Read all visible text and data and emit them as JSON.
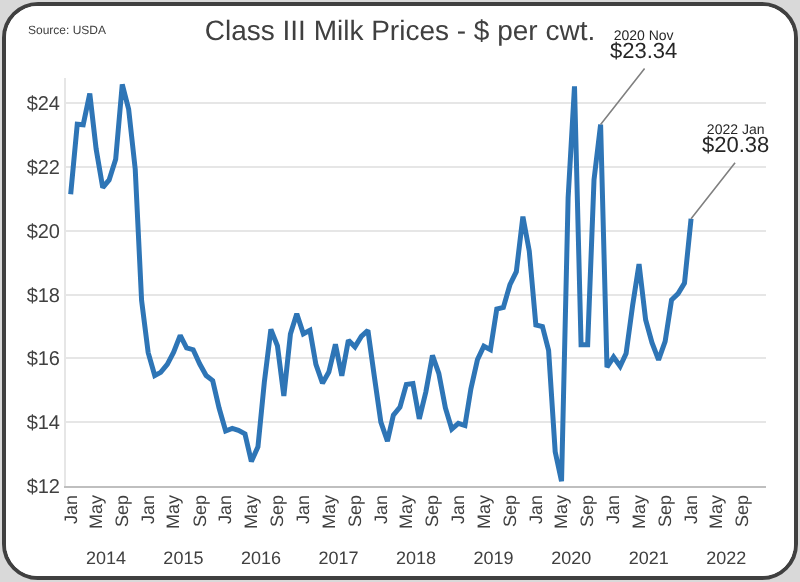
{
  "chart_data": {
    "type": "line",
    "title": "Class III Milk Prices - $ per cwt.",
    "x": [
      "2014-01",
      "2014-02",
      "2014-03",
      "2014-04",
      "2014-05",
      "2014-06",
      "2014-07",
      "2014-08",
      "2014-09",
      "2014-10",
      "2014-11",
      "2014-12",
      "2015-01",
      "2015-02",
      "2015-03",
      "2015-04",
      "2015-05",
      "2015-06",
      "2015-07",
      "2015-08",
      "2015-09",
      "2015-10",
      "2015-11",
      "2015-12",
      "2016-01",
      "2016-02",
      "2016-03",
      "2016-04",
      "2016-05",
      "2016-06",
      "2016-07",
      "2016-08",
      "2016-09",
      "2016-10",
      "2016-11",
      "2016-12",
      "2017-01",
      "2017-02",
      "2017-03",
      "2017-04",
      "2017-05",
      "2017-06",
      "2017-07",
      "2017-08",
      "2017-09",
      "2017-10",
      "2017-11",
      "2017-12",
      "2018-01",
      "2018-02",
      "2018-03",
      "2018-04",
      "2018-05",
      "2018-06",
      "2018-07",
      "2018-08",
      "2018-09",
      "2018-10",
      "2018-11",
      "2018-12",
      "2019-01",
      "2019-02",
      "2019-03",
      "2019-04",
      "2019-05",
      "2019-06",
      "2019-07",
      "2019-08",
      "2019-09",
      "2019-10",
      "2019-11",
      "2019-12",
      "2020-01",
      "2020-02",
      "2020-03",
      "2020-04",
      "2020-05",
      "2020-06",
      "2020-07",
      "2020-08",
      "2020-09",
      "2020-10",
      "2020-11",
      "2020-12",
      "2021-01",
      "2021-02",
      "2021-03",
      "2021-04",
      "2021-05",
      "2021-06",
      "2021-07",
      "2021-08",
      "2021-09",
      "2021-10",
      "2021-11",
      "2021-12",
      "2022-01"
    ],
    "series": [
      {
        "color": "#2e75b6",
        "values": [
          21.15,
          23.35,
          23.33,
          24.31,
          22.57,
          21.36,
          21.6,
          22.25,
          24.6,
          23.82,
          21.94,
          17.82,
          16.18,
          15.46,
          15.56,
          15.81,
          16.19,
          16.72,
          16.33,
          16.27,
          15.82,
          15.46,
          15.3,
          14.44,
          13.72,
          13.8,
          13.74,
          13.63,
          12.76,
          13.22,
          15.24,
          16.91,
          16.39,
          14.82,
          16.76,
          17.4,
          16.77,
          16.88,
          15.81,
          15.22,
          15.57,
          16.44,
          15.45,
          16.57,
          16.36,
          16.69,
          16.88,
          15.44,
          14.0,
          13.4,
          14.22,
          14.47,
          15.18,
          15.21,
          14.1,
          14.95,
          16.09,
          15.53,
          14.44,
          13.78,
          13.96,
          13.89,
          15.04,
          15.96,
          16.38,
          16.27,
          17.55,
          17.6,
          18.31,
          18.72,
          20.45,
          19.37,
          17.05,
          17.0,
          16.25,
          13.07,
          12.14,
          21.04,
          24.54,
          16.43,
          16.43,
          21.61,
          23.34,
          15.72,
          16.04,
          15.75,
          16.15,
          17.67,
          18.96,
          17.21,
          16.49,
          15.95,
          16.53,
          17.83,
          18.03,
          18.36,
          20.38
        ]
      }
    ],
    "xlim": [
      "2013-12-10",
      "2022-12-20"
    ],
    "xticks": [
      {
        "value": "2014-01",
        "label": "Jan"
      },
      {
        "value": "2014-05",
        "label": "May"
      },
      {
        "value": "2014-09",
        "label": "Sep"
      },
      {
        "value": "2015-01",
        "label": "Jan"
      },
      {
        "value": "2015-05",
        "label": "May"
      },
      {
        "value": "2015-09",
        "label": "Sep"
      },
      {
        "value": "2016-01",
        "label": "Jan"
      },
      {
        "value": "2016-05",
        "label": "May"
      },
      {
        "value": "2016-09",
        "label": "Sep"
      },
      {
        "value": "2017-01",
        "label": "Jan"
      },
      {
        "value": "2017-05",
        "label": "May"
      },
      {
        "value": "2017-09",
        "label": "Sep"
      },
      {
        "value": "2018-01",
        "label": "Jan"
      },
      {
        "value": "2018-05",
        "label": "May"
      },
      {
        "value": "2018-09",
        "label": "Sep"
      },
      {
        "value": "2019-01",
        "label": "Jan"
      },
      {
        "value": "2019-05",
        "label": "May"
      },
      {
        "value": "2019-09",
        "label": "Sep"
      },
      {
        "value": "2020-01",
        "label": "Jan"
      },
      {
        "value": "2020-05",
        "label": "May"
      },
      {
        "value": "2020-09",
        "label": "Sep"
      },
      {
        "value": "2021-01",
        "label": "Jan"
      },
      {
        "value": "2021-05",
        "label": "May"
      },
      {
        "value": "2021-09",
        "label": "Sep"
      },
      {
        "value": "2022-01",
        "label": "Jan"
      },
      {
        "value": "2022-05",
        "label": "May"
      },
      {
        "value": "2022-09",
        "label": "Sep"
      }
    ],
    "x2lim": [
      "2013-12-10",
      "2022-12-20"
    ],
    "x2ticks": [
      {
        "value": "2014-06-16",
        "label": "2014"
      },
      {
        "value": "2015-06-16",
        "label": "2015"
      },
      {
        "value": "2016-06-16",
        "label": "2016"
      },
      {
        "value": "2017-06-16",
        "label": "2017"
      },
      {
        "value": "2018-06-16",
        "label": "2018"
      },
      {
        "value": "2019-06-16",
        "label": "2019"
      },
      {
        "value": "2020-06-16",
        "label": "2020"
      },
      {
        "value": "2021-06-16",
        "label": "2021"
      },
      {
        "value": "2022-06-16",
        "label": "2022"
      }
    ],
    "ylim": [
      12,
      24.8
    ],
    "yticks": [
      {
        "value": 12,
        "label": "$12"
      },
      {
        "value": 14,
        "label": "$14"
      },
      {
        "value": 16,
        "label": "$16"
      },
      {
        "value": 18,
        "label": "$18"
      },
      {
        "value": 20,
        "label": "$20"
      },
      {
        "value": 22,
        "label": "$22"
      },
      {
        "value": 24,
        "label": "$24"
      }
    ],
    "grid": "y",
    "annotations": [
      "Source: USDA",
      {
        "text": "2020 Nov\n$23.34",
        "x": "2020-11",
        "y": 23.34
      },
      {
        "text": "2022 Jan\n$20.38",
        "x": "2022-01",
        "y": 20.38
      }
    ]
  }
}
